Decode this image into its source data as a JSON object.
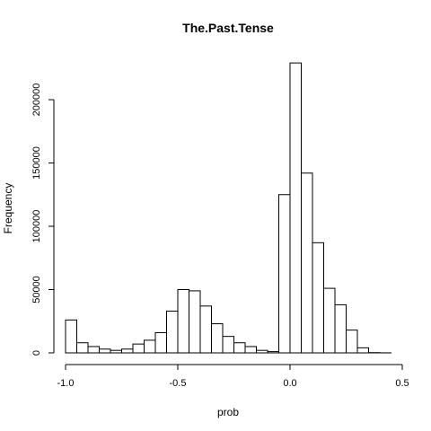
{
  "chart_data": {
    "type": "bar",
    "title": "The.Past.Tense",
    "xlabel": "prob",
    "ylabel": "Frequency",
    "xlim": [
      -1.0,
      0.45
    ],
    "ylim": [
      0,
      230000
    ],
    "bin_width": 0.05,
    "x_ticks": [
      -1.0,
      -0.5,
      0.0,
      0.5
    ],
    "x_tick_labels": [
      "-1.0",
      "-0.5",
      "0.0",
      "0.5"
    ],
    "y_ticks": [
      0,
      50000,
      100000,
      150000,
      200000
    ],
    "y_tick_labels": [
      "0",
      "50000",
      "100000",
      "150000",
      "200000"
    ],
    "bins": [
      {
        "x0": -1.0,
        "x1": -0.95,
        "value": 26000
      },
      {
        "x0": -0.95,
        "x1": -0.9,
        "value": 8000
      },
      {
        "x0": -0.9,
        "x1": -0.85,
        "value": 5000
      },
      {
        "x0": -0.85,
        "x1": -0.8,
        "value": 3000
      },
      {
        "x0": -0.8,
        "x1": -0.75,
        "value": 2000
      },
      {
        "x0": -0.75,
        "x1": -0.7,
        "value": 3000
      },
      {
        "x0": -0.7,
        "x1": -0.65,
        "value": 7000
      },
      {
        "x0": -0.65,
        "x1": -0.6,
        "value": 10000
      },
      {
        "x0": -0.6,
        "x1": -0.55,
        "value": 16000
      },
      {
        "x0": -0.55,
        "x1": -0.5,
        "value": 33000
      },
      {
        "x0": -0.5,
        "x1": -0.45,
        "value": 50000
      },
      {
        "x0": -0.45,
        "x1": -0.4,
        "value": 49000
      },
      {
        "x0": -0.4,
        "x1": -0.35,
        "value": 37000
      },
      {
        "x0": -0.35,
        "x1": -0.3,
        "value": 23000
      },
      {
        "x0": -0.3,
        "x1": -0.25,
        "value": 13000
      },
      {
        "x0": -0.25,
        "x1": -0.2,
        "value": 8000
      },
      {
        "x0": -0.2,
        "x1": -0.15,
        "value": 5000
      },
      {
        "x0": -0.15,
        "x1": -0.1,
        "value": 2000
      },
      {
        "x0": -0.1,
        "x1": -0.05,
        "value": 1000
      },
      {
        "x0": -0.05,
        "x1": 0.0,
        "value": 125000
      },
      {
        "x0": 0.0,
        "x1": 0.05,
        "value": 229000
      },
      {
        "x0": 0.05,
        "x1": 0.1,
        "value": 142000
      },
      {
        "x0": 0.1,
        "x1": 0.15,
        "value": 87000
      },
      {
        "x0": 0.15,
        "x1": 0.2,
        "value": 51000
      },
      {
        "x0": 0.2,
        "x1": 0.25,
        "value": 38000
      },
      {
        "x0": 0.25,
        "x1": 0.3,
        "value": 18000
      },
      {
        "x0": 0.3,
        "x1": 0.35,
        "value": 4000
      },
      {
        "x0": 0.35,
        "x1": 0.4,
        "value": 200
      },
      {
        "x0": 0.4,
        "x1": 0.45,
        "value": 50
      }
    ]
  }
}
